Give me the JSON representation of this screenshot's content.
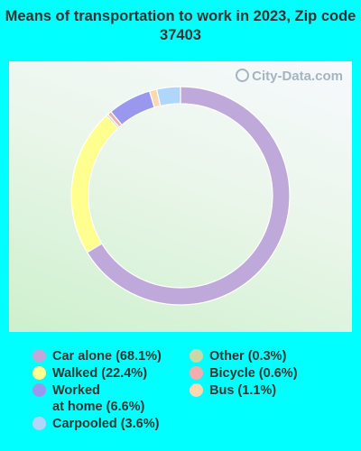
{
  "title": "Means of transportation to work in 2023, Zip code 37403",
  "watermark": "City-Data.com",
  "chart_data": {
    "type": "pie",
    "title": "Means of transportation to work in 2023, Zip code 37403",
    "slices": [
      {
        "label": "Car alone",
        "legend": "Car alone (68.1%)",
        "value": 68.1,
        "color": "#bfa9db"
      },
      {
        "label": "Walked",
        "legend": "Walked (22.4%)",
        "value": 22.4,
        "color": "#ffff8f"
      },
      {
        "label": "Other",
        "legend": "Other (0.3%)",
        "value": 0.3,
        "color": "#c8d8a8"
      },
      {
        "label": "Bicycle",
        "legend": "Bicycle (0.6%)",
        "value": 0.6,
        "color": "#f2aeae"
      },
      {
        "label": "Worked at home",
        "legend": "Worked\nat home (6.6%)",
        "value": 6.6,
        "color": "#9a98ee"
      },
      {
        "label": "Bus",
        "legend": "Bus (1.1%)",
        "value": 1.1,
        "color": "#fcd8b0"
      },
      {
        "label": "Carpooled",
        "legend": "Carpooled (3.6%)",
        "value": 3.6,
        "color": "#b0d6fc"
      }
    ],
    "legend_placement": "bottom"
  }
}
